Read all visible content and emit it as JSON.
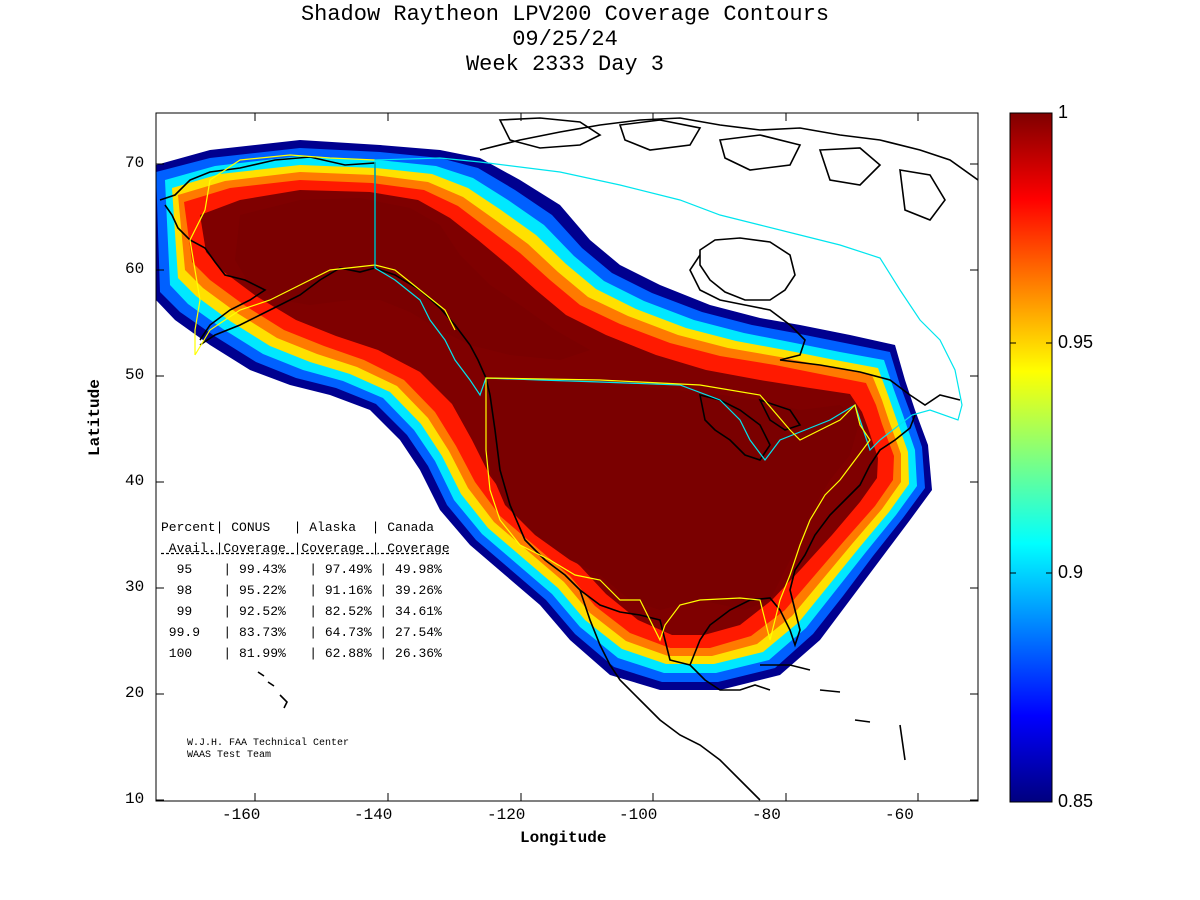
{
  "title": {
    "line1": "Shadow Raytheon LPV200 Coverage Contours",
    "line2": "09/25/24",
    "line3": "Week 2333 Day 3"
  },
  "axes": {
    "xlabel": "Longitude",
    "ylabel": "Latitude",
    "xlim": [
      -174,
      -50
    ],
    "ylim": [
      10,
      75
    ],
    "xticks": [
      "-160",
      "-140",
      "-120",
      "-100",
      "-80",
      "-60"
    ],
    "yticks": [
      "70",
      "60",
      "50",
      "40",
      "30",
      "20",
      "10"
    ]
  },
  "colorbar": {
    "range": [
      0.85,
      1
    ],
    "ticks": [
      "1",
      "0.95",
      "0.9",
      "0.85"
    ],
    "colormap": "jet",
    "colors": [
      "#00007f",
      "#0000ff",
      "#00ffff",
      "#ffff00",
      "#ff0000",
      "#7f0000"
    ]
  },
  "stats_table": {
    "header1": [
      "Percent",
      "CONUS",
      "Alaska",
      "Canada"
    ],
    "header2": [
      "Avail.",
      "Coverage",
      "Coverage",
      "Coverage"
    ],
    "rows": [
      [
        "95",
        "99.43%",
        "97.49%",
        "49.98%"
      ],
      [
        "98",
        "95.22%",
        "91.16%",
        "39.26%"
      ],
      [
        "99",
        "92.52%",
        "82.52%",
        "34.61%"
      ],
      [
        "99.9",
        "83.73%",
        "64.73%",
        "27.54%"
      ],
      [
        "100",
        "81.99%",
        "62.88%",
        "26.36%"
      ]
    ]
  },
  "credit": {
    "line1": "W.J.H. FAA Technical Center",
    "line2": "WAAS Test Team"
  },
  "colors": {
    "coast": "#000000",
    "conus_boundary": "#ffff00",
    "canada_boundary": "#00e5ee",
    "alaska_boundary": "#ffff00"
  }
}
